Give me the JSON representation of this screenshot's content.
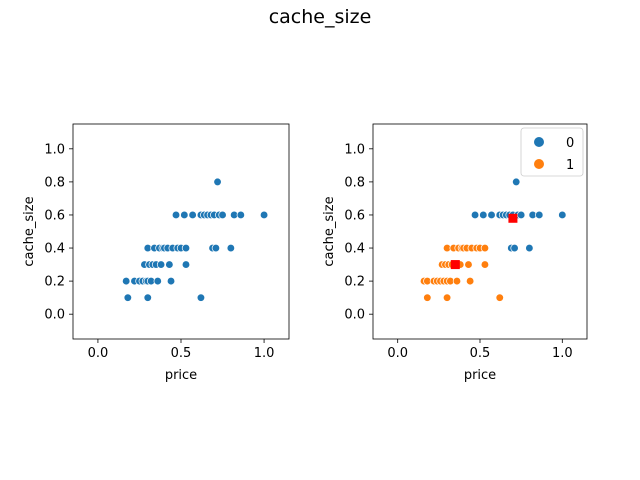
{
  "figure": {
    "title": "cache_size"
  },
  "colors": {
    "cluster_0": "#1f77b4",
    "cluster_1": "#ff7f0e",
    "centroid": "#ff0000",
    "frame": "#000000"
  },
  "chart_data": [
    {
      "type": "scatter",
      "xlabel": "price",
      "ylabel": "cache_size",
      "xlim": [
        -0.15,
        1.15
      ],
      "ylim": [
        -0.15,
        1.15
      ],
      "xticks": [
        "0.0",
        "0.5",
        "1.0"
      ],
      "yticks": [
        "0.0",
        "0.2",
        "0.4",
        "0.6",
        "0.8",
        "1.0"
      ],
      "legend": null,
      "series": [
        {
          "color": "#1f77b4",
          "points": [
            [
              0.17,
              0.2
            ],
            [
              0.18,
              0.1
            ],
            [
              0.22,
              0.2
            ],
            [
              0.25,
              0.2
            ],
            [
              0.27,
              0.2
            ],
            [
              0.28,
              0.3
            ],
            [
              0.29,
              0.2
            ],
            [
              0.3,
              0.4
            ],
            [
              0.3,
              0.2
            ],
            [
              0.3,
              0.1
            ],
            [
              0.31,
              0.3
            ],
            [
              0.32,
              0.2
            ],
            [
              0.33,
              0.3
            ],
            [
              0.34,
              0.4
            ],
            [
              0.35,
              0.3
            ],
            [
              0.36,
              0.2
            ],
            [
              0.37,
              0.4
            ],
            [
              0.38,
              0.3
            ],
            [
              0.39,
              0.4
            ],
            [
              0.4,
              0.4
            ],
            [
              0.42,
              0.4
            ],
            [
              0.43,
              0.3
            ],
            [
              0.44,
              0.2
            ],
            [
              0.45,
              0.4
            ],
            [
              0.47,
              0.6
            ],
            [
              0.48,
              0.4
            ],
            [
              0.5,
              0.4
            ],
            [
              0.52,
              0.6
            ],
            [
              0.53,
              0.3
            ],
            [
              0.53,
              0.4
            ],
            [
              0.57,
              0.6
            ],
            [
              0.62,
              0.6
            ],
            [
              0.62,
              0.1
            ],
            [
              0.64,
              0.6
            ],
            [
              0.66,
              0.6
            ],
            [
              0.68,
              0.6
            ],
            [
              0.69,
              0.4
            ],
            [
              0.7,
              0.6
            ],
            [
              0.71,
              0.4
            ],
            [
              0.72,
              0.8
            ],
            [
              0.73,
              0.6
            ],
            [
              0.75,
              0.6
            ],
            [
              0.8,
              0.4
            ],
            [
              0.82,
              0.6
            ],
            [
              0.86,
              0.6
            ],
            [
              1.0,
              0.6
            ]
          ]
        }
      ]
    },
    {
      "type": "scatter",
      "xlabel": "price",
      "ylabel": "cache_size",
      "xlim": [
        -0.15,
        1.15
      ],
      "ylim": [
        -0.15,
        1.15
      ],
      "xticks": [
        "0.0",
        "0.5",
        "1.0"
      ],
      "yticks": [
        "0.0",
        "0.2",
        "0.4",
        "0.6",
        "0.8",
        "1.0"
      ],
      "legend": "top-right",
      "series": [
        {
          "name": "0",
          "color": "#1f77b4",
          "points": [
            [
              0.47,
              0.6
            ],
            [
              0.52,
              0.6
            ],
            [
              0.57,
              0.6
            ],
            [
              0.62,
              0.6
            ],
            [
              0.64,
              0.6
            ],
            [
              0.66,
              0.6
            ],
            [
              0.68,
              0.6
            ],
            [
              0.69,
              0.4
            ],
            [
              0.7,
              0.6
            ],
            [
              0.71,
              0.4
            ],
            [
              0.72,
              0.8
            ],
            [
              0.73,
              0.6
            ],
            [
              0.75,
              0.6
            ],
            [
              0.8,
              0.4
            ],
            [
              0.82,
              0.6
            ],
            [
              0.86,
              0.6
            ],
            [
              1.0,
              0.6
            ]
          ]
        },
        {
          "name": "1",
          "color": "#ff7f0e",
          "points": [
            [
              0.16,
              0.2
            ],
            [
              0.18,
              0.2
            ],
            [
              0.18,
              0.1
            ],
            [
              0.22,
              0.2
            ],
            [
              0.24,
              0.2
            ],
            [
              0.26,
              0.2
            ],
            [
              0.27,
              0.3
            ],
            [
              0.28,
              0.2
            ],
            [
              0.29,
              0.3
            ],
            [
              0.3,
              0.4
            ],
            [
              0.3,
              0.2
            ],
            [
              0.3,
              0.1
            ],
            [
              0.31,
              0.3
            ],
            [
              0.32,
              0.2
            ],
            [
              0.33,
              0.3
            ],
            [
              0.34,
              0.4
            ],
            [
              0.35,
              0.3
            ],
            [
              0.36,
              0.2
            ],
            [
              0.37,
              0.4
            ],
            [
              0.38,
              0.3
            ],
            [
              0.39,
              0.4
            ],
            [
              0.4,
              0.4
            ],
            [
              0.42,
              0.4
            ],
            [
              0.43,
              0.3
            ],
            [
              0.44,
              0.2
            ],
            [
              0.45,
              0.4
            ],
            [
              0.48,
              0.4
            ],
            [
              0.5,
              0.4
            ],
            [
              0.53,
              0.3
            ],
            [
              0.53,
              0.4
            ],
            [
              0.62,
              0.1
            ]
          ]
        }
      ],
      "centroids": [
        {
          "cluster": "0",
          "x": 0.7,
          "y": 0.58
        },
        {
          "cluster": "1",
          "x": 0.35,
          "y": 0.3
        }
      ]
    }
  ]
}
